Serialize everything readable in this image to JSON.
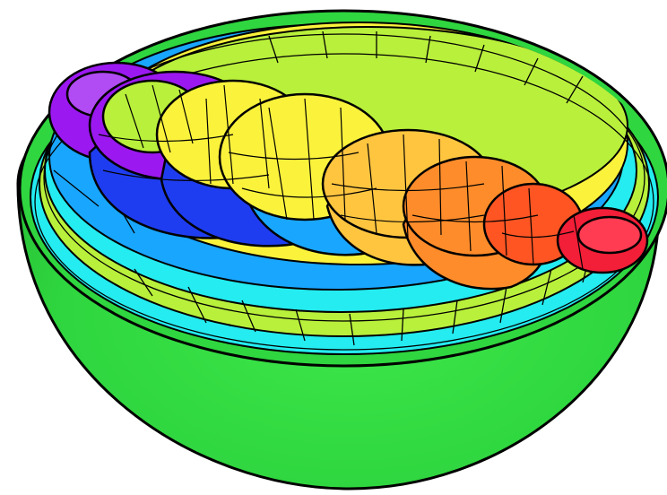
{
  "figure": {
    "outer_bowl_color": "#2fd63f",
    "outline_color": "#000000",
    "palette": {
      "violet": "#9b19f0",
      "blue": "#1f3df0",
      "sky": "#19a6ff",
      "cyan": "#24ecf0",
      "lime": "#b9f03b",
      "yellow": "#fbf23c",
      "gold": "#ffc53f",
      "orange": "#ff8c2a",
      "red_orange": "#ff5523",
      "red": "#f31e37"
    },
    "nested_surface_colors": [
      "#9b19f0",
      "#1f3df0",
      "#19a6ff",
      "#24ecf0",
      "#b9f03b",
      "#fbf23c",
      "#ffc53f",
      "#ff8c2a",
      "#ff5523",
      "#f31e37"
    ]
  }
}
